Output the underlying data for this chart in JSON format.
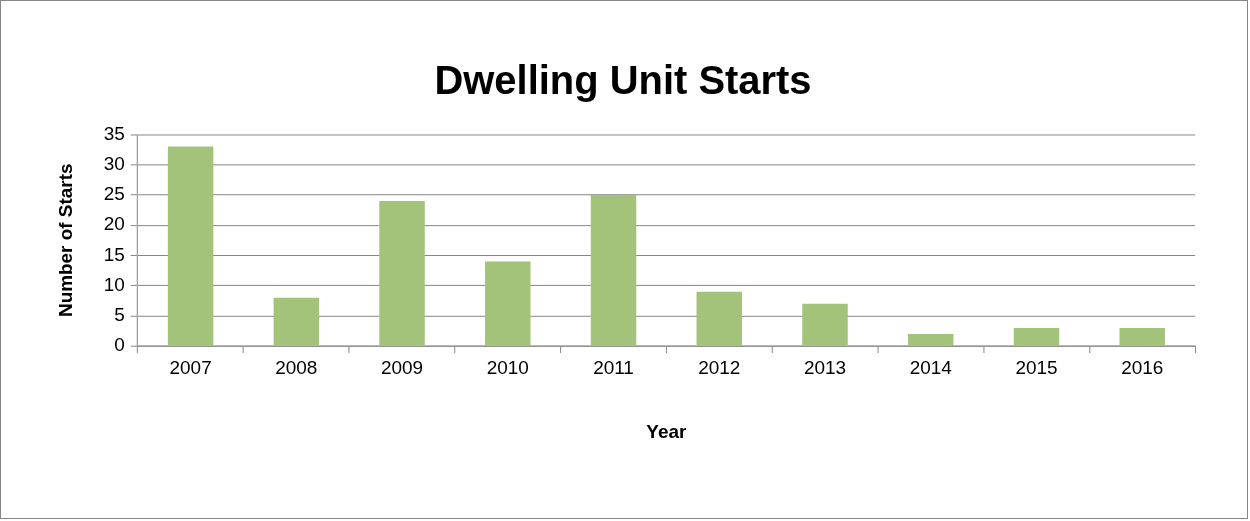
{
  "chart_data": {
    "type": "bar",
    "title": "Dwelling Unit Starts",
    "xlabel": "Year",
    "ylabel": "Number of Starts",
    "categories": [
      "2007",
      "2008",
      "2009",
      "2010",
      "2011",
      "2012",
      "2013",
      "2014",
      "2015",
      "2016"
    ],
    "values": [
      33,
      8,
      24,
      14,
      25,
      9,
      7,
      2,
      3,
      3
    ],
    "color": "#a3c27a",
    "ylim": [
      0,
      35
    ],
    "yticks": [
      0,
      5,
      10,
      15,
      20,
      25,
      30,
      35
    ],
    "grid": "y",
    "legend": false
  }
}
